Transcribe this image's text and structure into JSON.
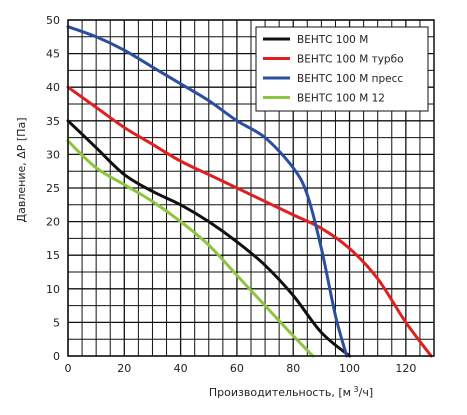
{
  "chart_data": {
    "type": "line",
    "xlabel": "Производительность, [м³/ч]",
    "xlabel_parts": {
      "before": "Производительность, [м",
      "sup": " 3",
      "after": "/ч]"
    },
    "ylabel": "Давление, ΔP [Па]",
    "xlim": [
      0,
      130
    ],
    "ylim": [
      0,
      50
    ],
    "x_major_ticks": [
      0,
      20,
      40,
      60,
      80,
      100,
      120
    ],
    "y_major_ticks": [
      0,
      5,
      10,
      15,
      20,
      25,
      30,
      35,
      40,
      45,
      50
    ],
    "x_grid_step": 5,
    "y_grid_step": 2.5,
    "grid": true,
    "legend_position": "top-right",
    "series": [
      {
        "name": "ВЕНТС 100 М",
        "color": "#111111",
        "x": [
          0,
          10,
          20,
          30,
          40,
          50,
          60,
          70,
          80,
          90,
          100
        ],
        "y": [
          35,
          31,
          27,
          24.5,
          22.5,
          20,
          17,
          13.5,
          9,
          3.5,
          0
        ]
      },
      {
        "name": "ВЕНТС 100 М турбо",
        "color": "#e02020",
        "x": [
          0,
          10,
          20,
          30,
          40,
          50,
          60,
          70,
          80,
          90,
          100,
          110,
          120,
          129
        ],
        "y": [
          40,
          37,
          34,
          31.5,
          29,
          27,
          25,
          23,
          21,
          19,
          16,
          11.5,
          5,
          0
        ]
      },
      {
        "name": "ВЕНТС 100 М пресс",
        "color": "#2a4fa0",
        "x": [
          0,
          10,
          20,
          30,
          40,
          50,
          60,
          70,
          80,
          85,
          90,
          95,
          99
        ],
        "y": [
          49,
          47.5,
          45.5,
          43,
          40.5,
          38,
          35,
          32.5,
          28,
          24,
          16,
          6,
          0
        ]
      },
      {
        "name": "ВЕНТС 100 М 12",
        "color": "#8cc63f",
        "x": [
          0,
          10,
          20,
          30,
          40,
          50,
          60,
          70,
          80,
          87
        ],
        "y": [
          32,
          28,
          25.5,
          23,
          20,
          16.5,
          12,
          7.5,
          3,
          0
        ]
      }
    ]
  }
}
